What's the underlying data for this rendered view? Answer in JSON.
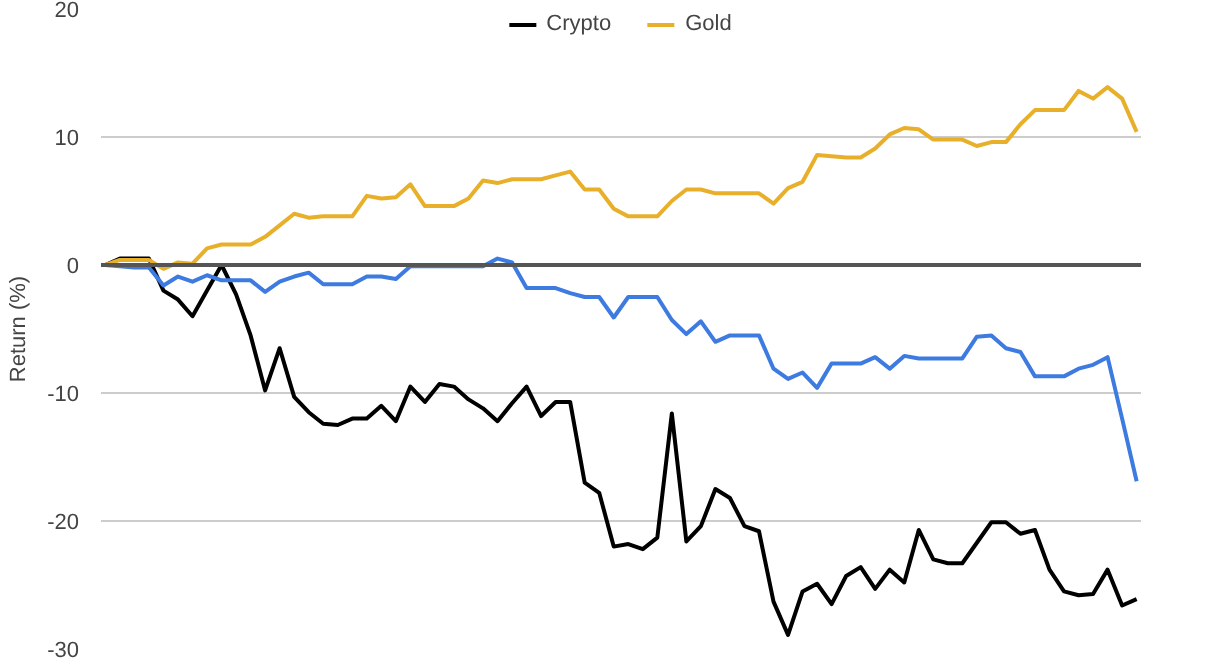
{
  "chart_data": {
    "type": "line",
    "ylabel": "Return (%)",
    "categories": [
      null,
      null,
      null,
      null,
      null,
      null,
      null,
      null,
      null,
      null,
      null,
      null,
      null,
      null,
      null,
      null,
      null,
      null,
      null,
      null,
      null,
      null,
      null,
      null,
      null,
      null,
      null,
      null,
      null,
      null,
      null,
      null,
      null,
      null,
      null,
      null,
      null,
      null,
      null,
      null,
      null,
      null,
      null,
      null,
      null,
      null,
      null,
      null,
      null,
      null,
      null,
      null,
      null,
      null,
      null,
      null,
      null,
      null,
      null,
      null,
      null,
      null,
      null,
      null,
      null,
      null,
      null,
      null,
      null,
      null,
      null,
      null
    ],
    "series": [
      {
        "name": "Crypto",
        "color": "#000000",
        "values": [
          0,
          0.5,
          0.5,
          0.5,
          -2,
          -2.7,
          -4,
          -2,
          0,
          -2.3,
          -5.5,
          -9.8,
          -6.5,
          -10.3,
          -11.5,
          -12.4,
          -12.5,
          -12,
          -12,
          -11,
          -12.2,
          -9.5,
          -10.7,
          -9.3,
          -9.5,
          -10.5,
          -11.2,
          -12.2,
          -10.8,
          -9.5,
          -11.8,
          -10.7,
          -10.7,
          -17,
          -17.8,
          -22,
          -21.8,
          -22.2,
          -21.3,
          -11.6,
          -21.6,
          -20.4,
          -17.5,
          -18.2,
          -20.4,
          -20.8,
          -26.3,
          -28.9,
          -25.5,
          -24.9,
          -26.5,
          -24.3,
          -23.6,
          -25.3,
          -23.8,
          -24.8,
          -20.7,
          -23,
          -23.3,
          -23.3,
          -21.7,
          -20.1,
          -20.1,
          -21,
          -20.7,
          -23.8,
          -25.5,
          -25.8,
          -25.7,
          -23.8,
          -26.6,
          -26.1
        ]
      },
      {
        "name": "Gold",
        "color": "#e8b02a",
        "values": [
          0,
          0.4,
          0.4,
          0.4,
          -0.3,
          0.2,
          0.1,
          1.3,
          1.6,
          1.6,
          1.6,
          2.2,
          3.1,
          4,
          3.7,
          3.8,
          3.8,
          3.8,
          5.4,
          5.2,
          5.3,
          6.3,
          4.6,
          4.6,
          4.6,
          5.2,
          6.6,
          6.4,
          6.7,
          6.7,
          6.7,
          7,
          7.3,
          5.9,
          5.9,
          4.4,
          3.8,
          3.8,
          3.8,
          5,
          5.9,
          5.9,
          5.6,
          5.6,
          5.6,
          5.6,
          4.8,
          6,
          6.5,
          8.6,
          8.5,
          8.4,
          8.4,
          9.1,
          10.2,
          10.7,
          10.6,
          9.8,
          9.8,
          9.8,
          9.3,
          9.6,
          9.6,
          11,
          12.1,
          12.1,
          12.1,
          13.6,
          13,
          13.9,
          13,
          10.4
        ]
      },
      {
        "color": "#3d7be0",
        "values": [
          0,
          -0.1,
          -0.2,
          -0.2,
          -1.6,
          -0.9,
          -1.3,
          -0.8,
          -1.2,
          -1.2,
          -1.2,
          -2.1,
          -1.3,
          -0.9,
          -0.6,
          -1.5,
          -1.5,
          -1.5,
          -0.9,
          -0.9,
          -1.1,
          -0.1,
          -0.1,
          -0.1,
          -0.1,
          -0.1,
          -0.1,
          0.5,
          0.2,
          -1.8,
          -1.8,
          -1.8,
          -2.2,
          -2.5,
          -2.5,
          -4.1,
          -2.5,
          -2.5,
          -2.5,
          -4.3,
          -5.4,
          -4.4,
          -6,
          -5.5,
          -5.5,
          -5.5,
          -8.1,
          -8.9,
          -8.4,
          -9.6,
          -7.7,
          -7.7,
          -7.7,
          -7.2,
          -8.1,
          -7.1,
          -7.3,
          -7.3,
          -7.3,
          -7.3,
          -5.6,
          -5.5,
          -6.5,
          -6.8,
          -8.7,
          -8.7,
          -8.7,
          -8.1,
          -7.8,
          -7.2,
          -12,
          -16.9
        ]
      }
    ],
    "ylim": [
      -30,
      20
    ],
    "yticks": [
      -30,
      -20,
      -10,
      0,
      10,
      20
    ],
    "ref_lines": [
      {
        "axis": "y",
        "value": 0,
        "color": "#555555"
      }
    ],
    "grid": "y",
    "legend": "top",
    "tick_labels": "y",
    "marker": "none",
    "line_style": "solid"
  }
}
